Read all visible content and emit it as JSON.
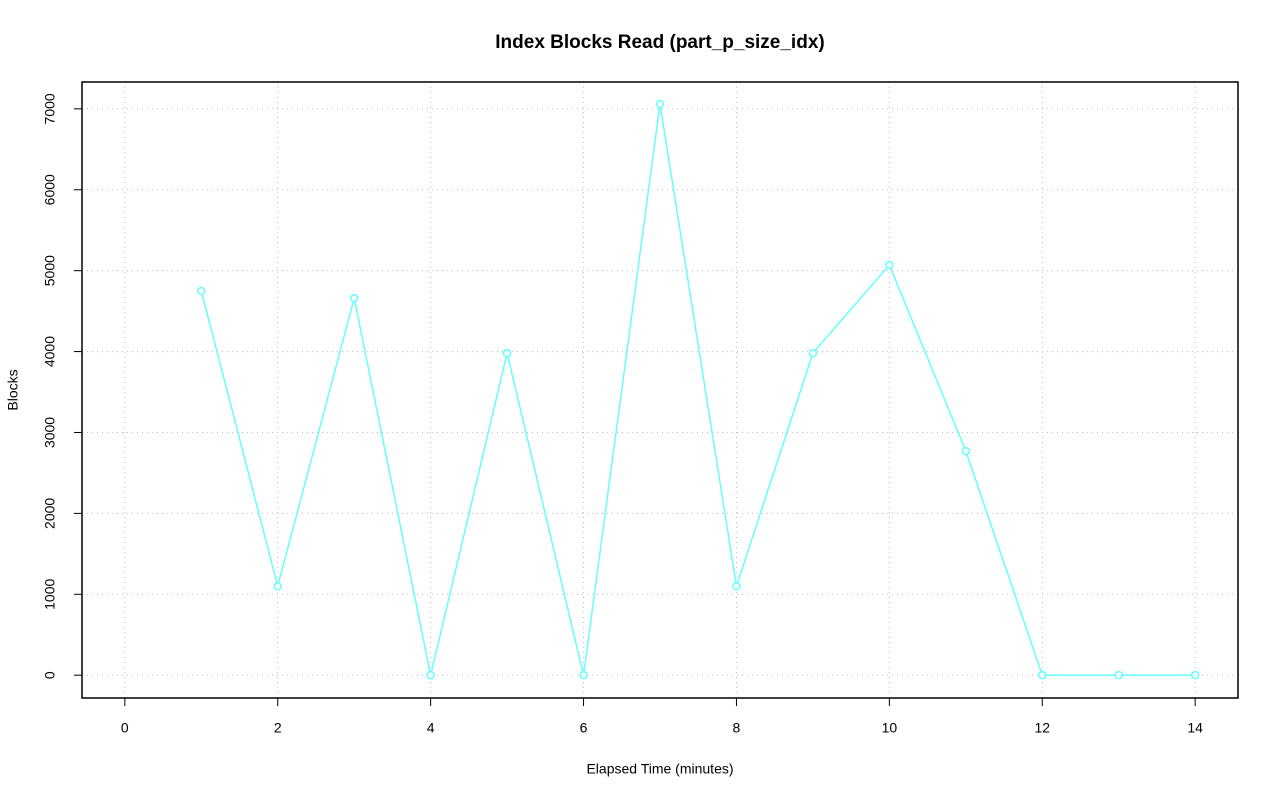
{
  "chart_data": {
    "type": "line",
    "title": "Index Blocks Read (part_p_size_idx)",
    "xlabel": "Elapsed Time (minutes)",
    "ylabel": "Blocks",
    "x": [
      1,
      2,
      3,
      4,
      5,
      6,
      7,
      8,
      9,
      10,
      11,
      12,
      13,
      14
    ],
    "series": [
      {
        "color": "#66ffff",
        "values": [
          4750,
          1100,
          4660,
          0,
          3980,
          0,
          7060,
          1100,
          3980,
          5070,
          2770,
          0,
          0,
          0
        ]
      }
    ],
    "xlim": [
      -0.56,
      14.56
    ],
    "xticks": [
      0,
      2,
      4,
      6,
      8,
      10,
      12,
      14
    ],
    "ylim": [
      -282,
      7332
    ],
    "yticks": [
      0,
      1000,
      2000,
      3000,
      4000,
      5000,
      6000,
      7000
    ],
    "grid": true
  }
}
